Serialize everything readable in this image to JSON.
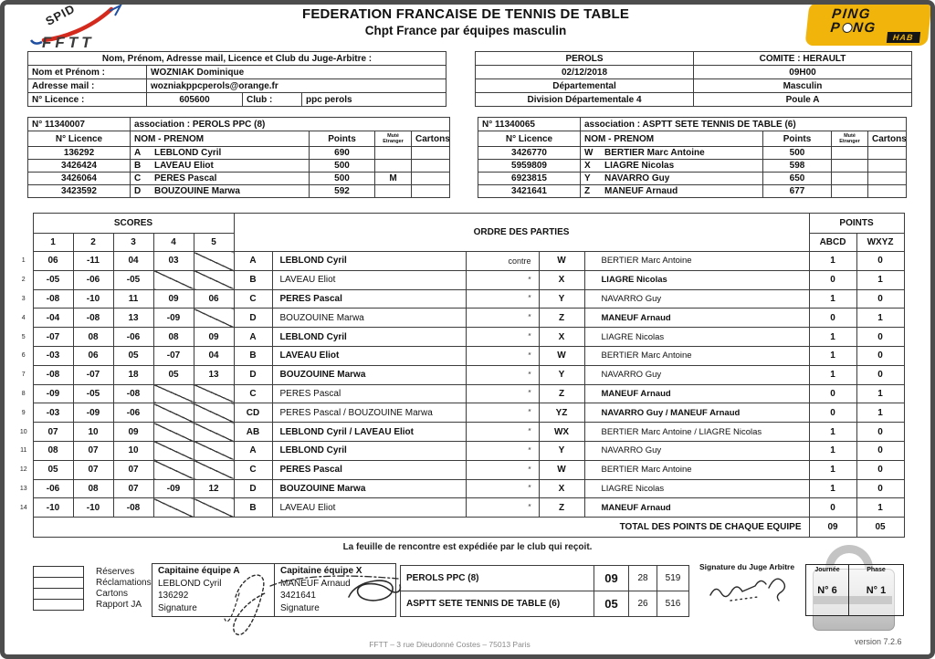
{
  "page": {
    "title_line1": "FEDERATION FRANCAISE DE TENNIS DE TABLE",
    "title_line2": "Chpt France par équipes masculin",
    "dispatch_note": "La feuille de rencontre est expédiée par le club qui reçoit.",
    "footer": "FFTT  –  3 rue Dieudonné Costes  –  75013 Paris",
    "version": "version 7.2.6"
  },
  "logos": {
    "spid_text": "SPID",
    "fftt_text": "FFTT",
    "pp_line1": "PING",
    "pp_p": "P",
    "pp_ng": "NG",
    "pp_hab": "HAB"
  },
  "colors": {
    "accent_yellow": "#f0b40a",
    "accent_red": "#d42a1e",
    "accent_blue": "#1f4fa0",
    "frame_gray": "#4d4d4d"
  },
  "judge_block": {
    "header": "Nom, Prénom, Adresse mail, Licence et Club du Juge-Arbitre :",
    "name_label": "Nom et Prénom :",
    "name_value": "WOZNIAK   Dominique",
    "mail_label": "Adresse mail   :",
    "mail_value": "wozniakppcperols@orange.fr",
    "licence_label": "N° Licence     :",
    "licence_value": "605600",
    "club_label": "Club :",
    "club_value": "ppc perols"
  },
  "match_info": {
    "rows": [
      {
        "left": "PEROLS",
        "right": "COMITE : HERAULT"
      },
      {
        "left": "02/12/2018",
        "right": "09H00"
      },
      {
        "left": "Départemental",
        "right": "Masculin"
      },
      {
        "left": "Division  Départementale 4",
        "right": "Poule A"
      }
    ]
  },
  "roster_headers": {
    "licence": "N° Licence",
    "name": "NOM - PRENOM",
    "points": "Points",
    "mut_line1": "Muté",
    "mut_line2": "Etranger",
    "cartons": "Cartons"
  },
  "team_a": {
    "number": "N° 11340007",
    "association": "association : PEROLS PPC   (8)",
    "players": [
      {
        "licence": "136292",
        "letter": "A",
        "name": "LEBLOND  Cyril",
        "points": "690",
        "mut": "",
        "cartons": ""
      },
      {
        "licence": "3426424",
        "letter": "B",
        "name": "LAVEAU  Eliot",
        "points": "500",
        "mut": "",
        "cartons": ""
      },
      {
        "licence": "3426064",
        "letter": "C",
        "name": "PERES  Pascal",
        "points": "500",
        "mut": "M",
        "cartons": ""
      },
      {
        "licence": "3423592",
        "letter": "D",
        "name": "BOUZOUINE  Marwa",
        "points": "592",
        "mut": "",
        "cartons": ""
      }
    ]
  },
  "team_x": {
    "number": "N° 11340065",
    "association": "association : ASPTT SETE TENNIS DE TABLE   (6)",
    "players": [
      {
        "licence": "3426770",
        "letter": "W",
        "name": "BERTIER  Marc Antoine",
        "points": "500",
        "mut": "",
        "cartons": ""
      },
      {
        "licence": "5959809",
        "letter": "X",
        "name": "LIAGRE  Nicolas",
        "points": "598",
        "mut": "",
        "cartons": ""
      },
      {
        "licence": "6923815",
        "letter": "Y",
        "name": "NAVARRO  Guy",
        "points": "650",
        "mut": "",
        "cartons": ""
      },
      {
        "licence": "3421641",
        "letter": "Z",
        "name": "MANEUF  Arnaud",
        "points": "677",
        "mut": "",
        "cartons": ""
      }
    ]
  },
  "main_table": {
    "scores_header": "SCORES",
    "set_numbers": [
      "1",
      "2",
      "3",
      "4",
      "5"
    ],
    "ordre_header": "ORDRE DES PARTIES",
    "points_header": "POINTS",
    "abcd": "ABCD",
    "wxyz": "WXYZ",
    "total_label": "TOTAL DES POINTS DE CHAQUE EQUIPE",
    "total_abcd": "09",
    "total_wxyz": "05",
    "games": [
      {
        "num": "1",
        "scores": [
          "06",
          "-11",
          "04",
          "03",
          null
        ],
        "letter": "A",
        "player": "LEBLOND Cyril",
        "player_bold": true,
        "vs": "contre",
        "opp_letter": "W",
        "opp": "BERTIER Marc Antoine",
        "opp_bold": false,
        "pa": "1",
        "px": "0"
      },
      {
        "num": "2",
        "scores": [
          "-05",
          "-06",
          "-05",
          null,
          null
        ],
        "letter": "B",
        "player": "LAVEAU Eliot",
        "player_bold": false,
        "vs": "″",
        "opp_letter": "X",
        "opp": "LIAGRE Nicolas",
        "opp_bold": true,
        "pa": "0",
        "px": "1"
      },
      {
        "num": "3",
        "scores": [
          "-08",
          "-10",
          "11",
          "09",
          "06"
        ],
        "letter": "C",
        "player": "PERES Pascal",
        "player_bold": true,
        "vs": "″",
        "opp_letter": "Y",
        "opp": "NAVARRO Guy",
        "opp_bold": false,
        "pa": "1",
        "px": "0"
      },
      {
        "num": "4",
        "scores": [
          "-04",
          "-08",
          "13",
          "-09",
          null
        ],
        "letter": "D",
        "player": "BOUZOUINE Marwa",
        "player_bold": false,
        "vs": "″",
        "opp_letter": "Z",
        "opp": "MANEUF Arnaud",
        "opp_bold": true,
        "pa": "0",
        "px": "1"
      },
      {
        "num": "5",
        "scores": [
          "-07",
          "08",
          "-06",
          "08",
          "09"
        ],
        "letter": "A",
        "player": "LEBLOND Cyril",
        "player_bold": true,
        "vs": "″",
        "opp_letter": "X",
        "opp": "LIAGRE Nicolas",
        "opp_bold": false,
        "pa": "1",
        "px": "0"
      },
      {
        "num": "6",
        "scores": [
          "-03",
          "06",
          "05",
          "-07",
          "04"
        ],
        "letter": "B",
        "player": "LAVEAU Eliot",
        "player_bold": true,
        "vs": "″",
        "opp_letter": "W",
        "opp": "BERTIER Marc Antoine",
        "opp_bold": false,
        "pa": "1",
        "px": "0"
      },
      {
        "num": "7",
        "scores": [
          "-08",
          "-07",
          "18",
          "05",
          "13"
        ],
        "letter": "D",
        "player": "BOUZOUINE Marwa",
        "player_bold": true,
        "vs": "″",
        "opp_letter": "Y",
        "opp": "NAVARRO Guy",
        "opp_bold": false,
        "pa": "1",
        "px": "0"
      },
      {
        "num": "8",
        "scores": [
          "-09",
          "-05",
          "-08",
          null,
          null
        ],
        "letter": "C",
        "player": "PERES Pascal",
        "player_bold": false,
        "vs": "″",
        "opp_letter": "Z",
        "opp": "MANEUF Arnaud",
        "opp_bold": true,
        "pa": "0",
        "px": "1"
      },
      {
        "num": "9",
        "scores": [
          "-03",
          "-09",
          "-06",
          null,
          null
        ],
        "letter": "CD",
        "player": "PERES Pascal / BOUZOUINE Marwa",
        "player_bold": false,
        "vs": "″",
        "opp_letter": "YZ",
        "opp": "NAVARRO Guy / MANEUF Arnaud",
        "opp_bold": true,
        "pa": "0",
        "px": "1"
      },
      {
        "num": "10",
        "scores": [
          "07",
          "10",
          "09",
          null,
          null
        ],
        "letter": "AB",
        "player": "LEBLOND Cyril / LAVEAU Eliot",
        "player_bold": true,
        "vs": "″",
        "opp_letter": "WX",
        "opp": "BERTIER Marc Antoine / LIAGRE Nicolas",
        "opp_bold": false,
        "pa": "1",
        "px": "0"
      },
      {
        "num": "11",
        "scores": [
          "08",
          "07",
          "10",
          null,
          null
        ],
        "letter": "A",
        "player": "LEBLOND Cyril",
        "player_bold": true,
        "vs": "″",
        "opp_letter": "Y",
        "opp": "NAVARRO Guy",
        "opp_bold": false,
        "pa": "1",
        "px": "0"
      },
      {
        "num": "12",
        "scores": [
          "05",
          "07",
          "07",
          null,
          null
        ],
        "letter": "C",
        "player": "PERES Pascal",
        "player_bold": true,
        "vs": "″",
        "opp_letter": "W",
        "opp": "BERTIER Marc Antoine",
        "opp_bold": false,
        "pa": "1",
        "px": "0"
      },
      {
        "num": "13",
        "scores": [
          "-06",
          "08",
          "07",
          "-09",
          "12"
        ],
        "letter": "D",
        "player": "BOUZOUINE Marwa",
        "player_bold": true,
        "vs": "″",
        "opp_letter": "X",
        "opp": "LIAGRE Nicolas",
        "opp_bold": false,
        "pa": "1",
        "px": "0"
      },
      {
        "num": "14",
        "scores": [
          "-10",
          "-10",
          "-08",
          null,
          null
        ],
        "letter": "B",
        "player": "LAVEAU Eliot",
        "player_bold": false,
        "vs": "″",
        "opp_letter": "Z",
        "opp": "MANEUF Arnaud",
        "opp_bold": true,
        "pa": "0",
        "px": "1"
      }
    ]
  },
  "checkboxes": [
    "Réserves",
    "Réclamations",
    "Cartons",
    "Rapport JA"
  ],
  "captain_a": {
    "title": "Capitaine équipe A",
    "name": "LEBLOND Cyril",
    "licence": "136292",
    "signature_label": "Signature"
  },
  "captain_x": {
    "title": "Capitaine équipe X",
    "name": "MANEUF Arnaud",
    "licence": "3421641",
    "signature_label": "Signature"
  },
  "results": {
    "rows": [
      {
        "club": "PEROLS PPC   (8)",
        "points": "09",
        "parties": "28",
        "sets": "519"
      },
      {
        "club": "ASPTT SETE TENNIS DE TABLE   (6)",
        "points": "05",
        "parties": "26",
        "sets": "516"
      }
    ]
  },
  "judge_signature_label": "Signature du Juge Arbitre",
  "stamp": {
    "journee_label": "Journée",
    "journee_value": "N° 6",
    "phase_label": "Phase",
    "phase_value": "N° 1"
  }
}
